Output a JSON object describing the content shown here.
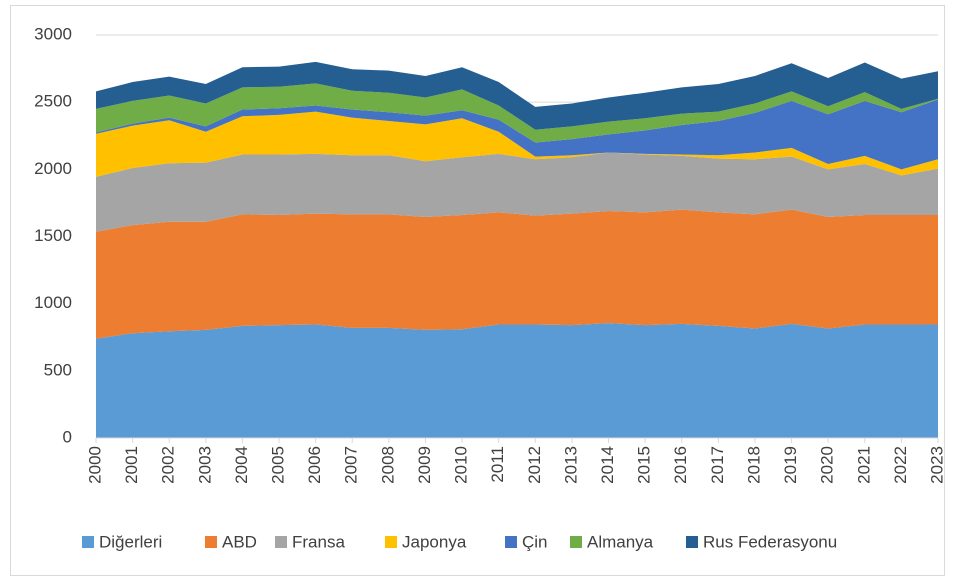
{
  "chart_data": {
    "type": "stacked_area",
    "categories": [
      "2000",
      "2001",
      "2002",
      "2003",
      "2004",
      "2005",
      "2006",
      "2007",
      "2008",
      "2009",
      "2010",
      "2011",
      "2012",
      "2013",
      "2014",
      "2015",
      "2016",
      "2017",
      "2018",
      "2019",
      "2020",
      "2021",
      "2022",
      "2023"
    ],
    "series": [
      {
        "name": "Diğerleri",
        "color": "#5b9bd5",
        "values": [
          740,
          780,
          795,
          805,
          835,
          840,
          845,
          820,
          820,
          805,
          810,
          845,
          845,
          840,
          855,
          840,
          850,
          835,
          815,
          850,
          815,
          845,
          845,
          845
        ]
      },
      {
        "name": "ABD",
        "color": "#ed7d31",
        "values": [
          795,
          805,
          815,
          805,
          830,
          820,
          825,
          845,
          845,
          840,
          850,
          835,
          810,
          830,
          835,
          840,
          850,
          845,
          850,
          850,
          830,
          815,
          815,
          815
        ]
      },
      {
        "name": "Fransa",
        "color": "#a5a5a5",
        "values": [
          410,
          425,
          435,
          440,
          445,
          450,
          445,
          440,
          440,
          415,
          430,
          435,
          420,
          420,
          435,
          430,
          400,
          400,
          410,
          395,
          355,
          380,
          295,
          345
        ]
      },
      {
        "name": "Japonya",
        "color": "#ffc000",
        "values": [
          320,
          315,
          320,
          230,
          285,
          295,
          315,
          280,
          255,
          275,
          290,
          165,
          20,
          15,
          0,
          5,
          10,
          25,
          50,
          65,
          40,
          60,
          45,
          70
        ]
      },
      {
        "name": "Çin",
        "color": "#4472c4",
        "values": [
          10,
          15,
          20,
          40,
          50,
          50,
          45,
          60,
          65,
          65,
          60,
          90,
          105,
          120,
          135,
          175,
          220,
          255,
          295,
          350,
          370,
          410,
          425,
          445
        ]
      },
      {
        "name": "Almanya",
        "color": "#70ad47",
        "values": [
          175,
          170,
          165,
          170,
          165,
          160,
          165,
          140,
          145,
          135,
          155,
          105,
          95,
          95,
          95,
          90,
          85,
          70,
          70,
          70,
          60,
          65,
          25,
          5
        ]
      },
      {
        "name": "Rus Federasyonu",
        "color": "#255e91",
        "values": [
          130,
          140,
          140,
          145,
          150,
          150,
          160,
          160,
          165,
          160,
          165,
          175,
          170,
          170,
          180,
          190,
          195,
          205,
          205,
          210,
          210,
          220,
          225,
          205
        ]
      }
    ],
    "ylim": [
      0,
      3000
    ],
    "yticks": [
      0,
      500,
      1000,
      1500,
      2000,
      2500,
      3000
    ],
    "grid": true,
    "legend": "bottom"
  }
}
